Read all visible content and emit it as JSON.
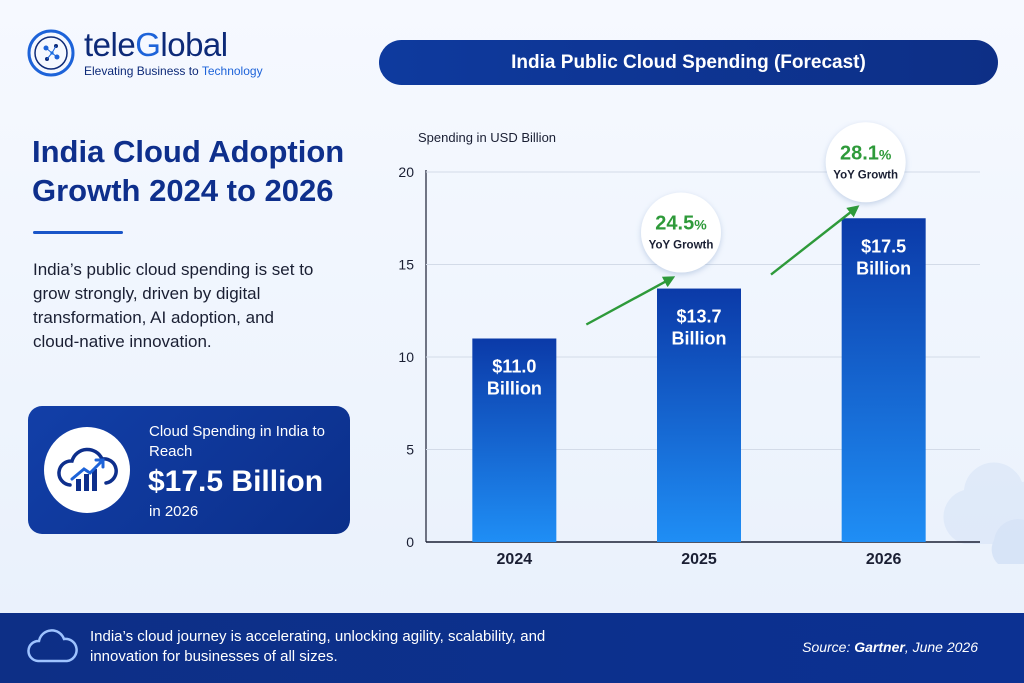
{
  "brand": {
    "name_part1": "tele",
    "name_part2": "G",
    "name_part3": "lobal",
    "tagline_part1": "Elevating Business to ",
    "tagline_part2": "Technology"
  },
  "title": "India Public Cloud Spending (Forecast)",
  "headline": "India Cloud Adoption Growth 2024 to 2026",
  "description": "India’s public cloud spending is set to grow strongly, driven by digital transformation, AI adoption, and cloud-native innovation.",
  "callout": {
    "pre": "Cloud Spending in India to Reach",
    "value": "$17.5 Billion",
    "post": "in 2026"
  },
  "chart_data": {
    "type": "bar",
    "title": "India Public Cloud Spending (Forecast)",
    "ylabel": "Spending in USD Billion",
    "categories": [
      "2024",
      "2025",
      "2026"
    ],
    "values": [
      11.0,
      13.7,
      17.5
    ],
    "data_labels": [
      [
        "$11.0",
        "Billion"
      ],
      [
        "$13.7",
        "Billion"
      ],
      [
        "$17.5",
        "Billion"
      ]
    ],
    "ylim": [
      0,
      20
    ],
    "yticks": [
      0,
      5,
      10,
      15,
      20
    ],
    "grid": true,
    "annotations": [
      {
        "value": "24.5",
        "unit": "%",
        "label": "YoY Growth",
        "between": [
          "2024",
          "2025"
        ]
      },
      {
        "value": "28.1",
        "unit": "%",
        "label": "YoY Growth",
        "between": [
          "2025",
          "2026"
        ]
      }
    ],
    "colors": {
      "bar_top": "#0b3aa8",
      "bar_bottom": "#1f8ef5",
      "growth": "#2e9a3a"
    }
  },
  "footer": {
    "text": "India’s cloud journey is accelerating, unlocking agility, scalability, and innovation for businesses of all sizes.",
    "source_prefix": "Source: ",
    "source_name": "Gartner",
    "source_suffix": ", June 2026"
  }
}
